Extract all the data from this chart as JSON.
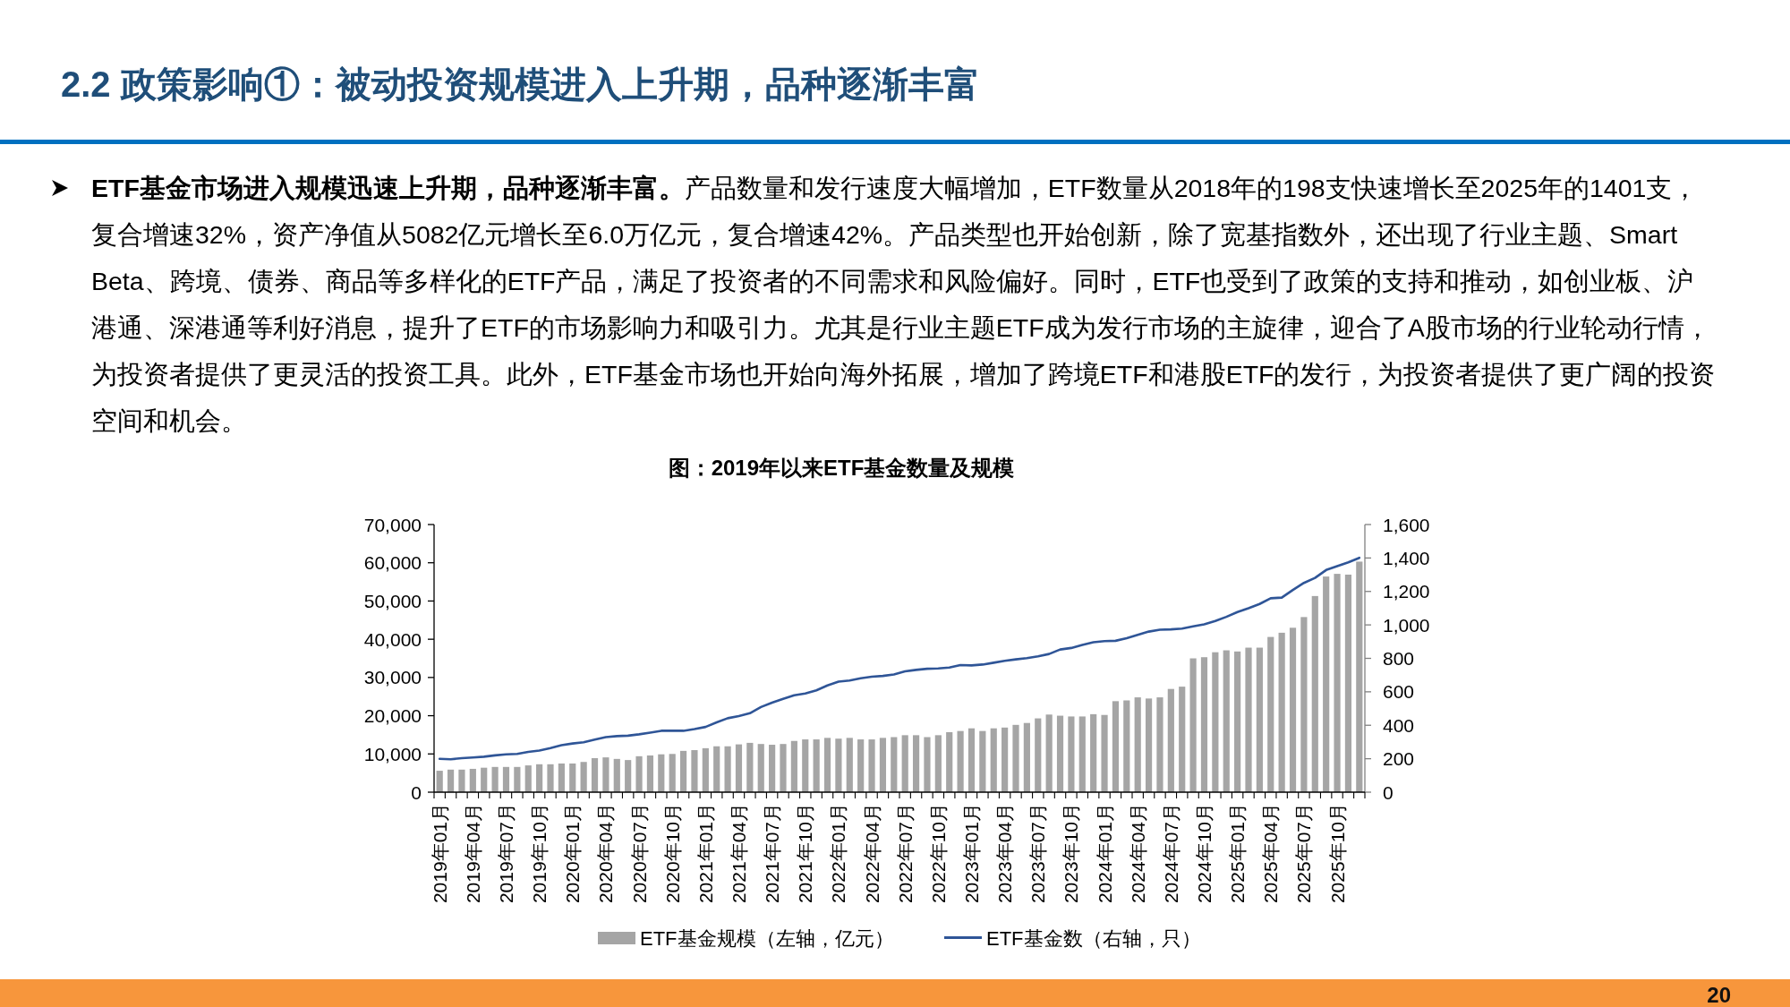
{
  "chart_data": {
    "type": "bar",
    "title": "2.2 政策影响①：被动投资规模进入上升期，品种逐渐丰富",
    "subtitle": "图：2019年以来ETF基金数量及规模",
    "annotations": [
      "ETF基金市场进入规模迅速上升期，品种逐渐丰富。产品数量和发行速度大幅增加，ETF数量从2018年的198支快速增长至2025年的1401支，复合增速32%，资产净值从5082亿元增长至6.0万亿元，复合增速42%。产品类型也开始创新，除了宽基指数外，还出现了行业主题、Smart Beta、跨境、债券、商品等多样化的ETF产品，满足了投资者的不同需求和风险偏好。同时，ETF也受到了政策的支持和推动，如创业板、沪港通、深港通等利好消息，提升了ETF的市场影响力和吸引力。尤其是行业主题ETF成为发行市场的主旋律，迎合了A股市场的行业轮动行情，为投资者提供了更灵活的投资工具。此外，ETF基金市场也开始向海外拓展，增加了跨境ETF和港股ETF的发行，为投资者提供了更广阔的投资空间和机会。",
      "20"
    ],
    "categories": [
      "2019年01月",
      null,
      null,
      "2019年04月",
      null,
      null,
      "2019年07月",
      null,
      null,
      "2019年10月",
      null,
      null,
      "2020年01月",
      null,
      null,
      "2020年04月",
      null,
      null,
      "2020年07月",
      null,
      null,
      "2020年10月",
      null,
      null,
      "2021年01月",
      null,
      null,
      "2021年04月",
      null,
      null,
      "2021年07月",
      null,
      null,
      "2021年10月",
      null,
      null,
      "2022年01月",
      null,
      null,
      "2022年04月",
      null,
      null,
      "2022年07月",
      null,
      null,
      "2022年10月",
      null,
      null,
      "2023年01月",
      null,
      null,
      "2023年04月",
      null,
      null,
      "2023年07月",
      null,
      null,
      "2023年10月",
      null,
      null,
      "2024年01月",
      null,
      null,
      "2024年04月",
      null,
      null,
      "2024年07月",
      null,
      null,
      "2024年10月",
      null,
      null,
      "2025年01月",
      null,
      null,
      "2025年04月",
      null,
      null,
      "2025年07月",
      null,
      null,
      "2025年10月",
      null,
      null
    ],
    "series": [
      {
        "name": "ETF基金规模（左轴，亿元）",
        "type": "bar",
        "color": "#a5a5a5",
        "values": [
          5600,
          5900,
          5900,
          6100,
          6400,
          6600,
          6600,
          6600,
          7000,
          7300,
          7300,
          7500,
          7500,
          7900,
          8900,
          9100,
          8700,
          8400,
          9400,
          9600,
          9900,
          10000,
          10800,
          11000,
          11500,
          12000,
          12000,
          12500,
          12900,
          12600,
          12400,
          12600,
          13400,
          13800,
          13800,
          14200,
          14000,
          14200,
          13800,
          13800,
          14200,
          14400,
          14900,
          14900,
          14400,
          14900,
          15700,
          16000,
          16700,
          16000,
          16700,
          16900,
          17600,
          18100,
          19300,
          20300,
          20000,
          19800,
          19800,
          20400,
          20200,
          23800,
          24000,
          24800,
          24500,
          24800,
          27000,
          27600,
          35000,
          35300,
          36600,
          37100,
          36800,
          37800,
          37800,
          40600,
          41700,
          43000,
          45800,
          51300,
          56400,
          57100,
          56900,
          60300
        ]
      },
      {
        "name": "ETF基金数（右轴，只）",
        "type": "line",
        "axis": "y2",
        "color": "#2f5597",
        "values": [
          199,
          197,
          203,
          207,
          212,
          220,
          226,
          229,
          241,
          249,
          264,
          281,
          291,
          298,
          314,
          329,
          335,
          338,
          346,
          356,
          367,
          367,
          367,
          377,
          390,
          417,
          442,
          455,
          472,
          509,
          535,
          558,
          579,
          590,
          609,
          638,
          661,
          668,
          681,
          690,
          695,
          704,
          722,
          731,
          738,
          740,
          745,
          760,
          758,
          763,
          774,
          785,
          794,
          801,
          812,
          826,
          853,
          862,
          880,
          896,
          903,
          905,
          921,
          941,
          960,
          971,
          973,
          978,
          991,
          1003,
          1023,
          1048,
          1077,
          1100,
          1125,
          1159,
          1163,
          1209,
          1251,
          1281,
          1328,
          1351,
          1374,
          1401
        ]
      }
    ],
    "ylim": [
      0,
      70000
    ],
    "yticks": [
      0,
      {
        "value": 10000,
        "label": "10,000"
      },
      {
        "value": 20000,
        "label": "20,000"
      },
      {
        "value": 30000,
        "label": "30,000"
      },
      {
        "value": 40000,
        "label": "40,000"
      },
      {
        "value": 50000,
        "label": "50,000"
      },
      {
        "value": 60000,
        "label": "60,000"
      },
      {
        "value": 70000,
        "label": "70,000"
      }
    ],
    "y2lim": [
      0,
      1600
    ],
    "y2ticks": [
      0,
      200,
      400,
      600,
      800,
      {
        "value": 1000,
        "label": "1,000"
      },
      {
        "value": 1200,
        "label": "1,200"
      },
      {
        "value": 1400,
        "label": "1,400"
      },
      {
        "value": 1600,
        "label": "1,600"
      }
    ],
    "legend": "bottom"
  }
}
